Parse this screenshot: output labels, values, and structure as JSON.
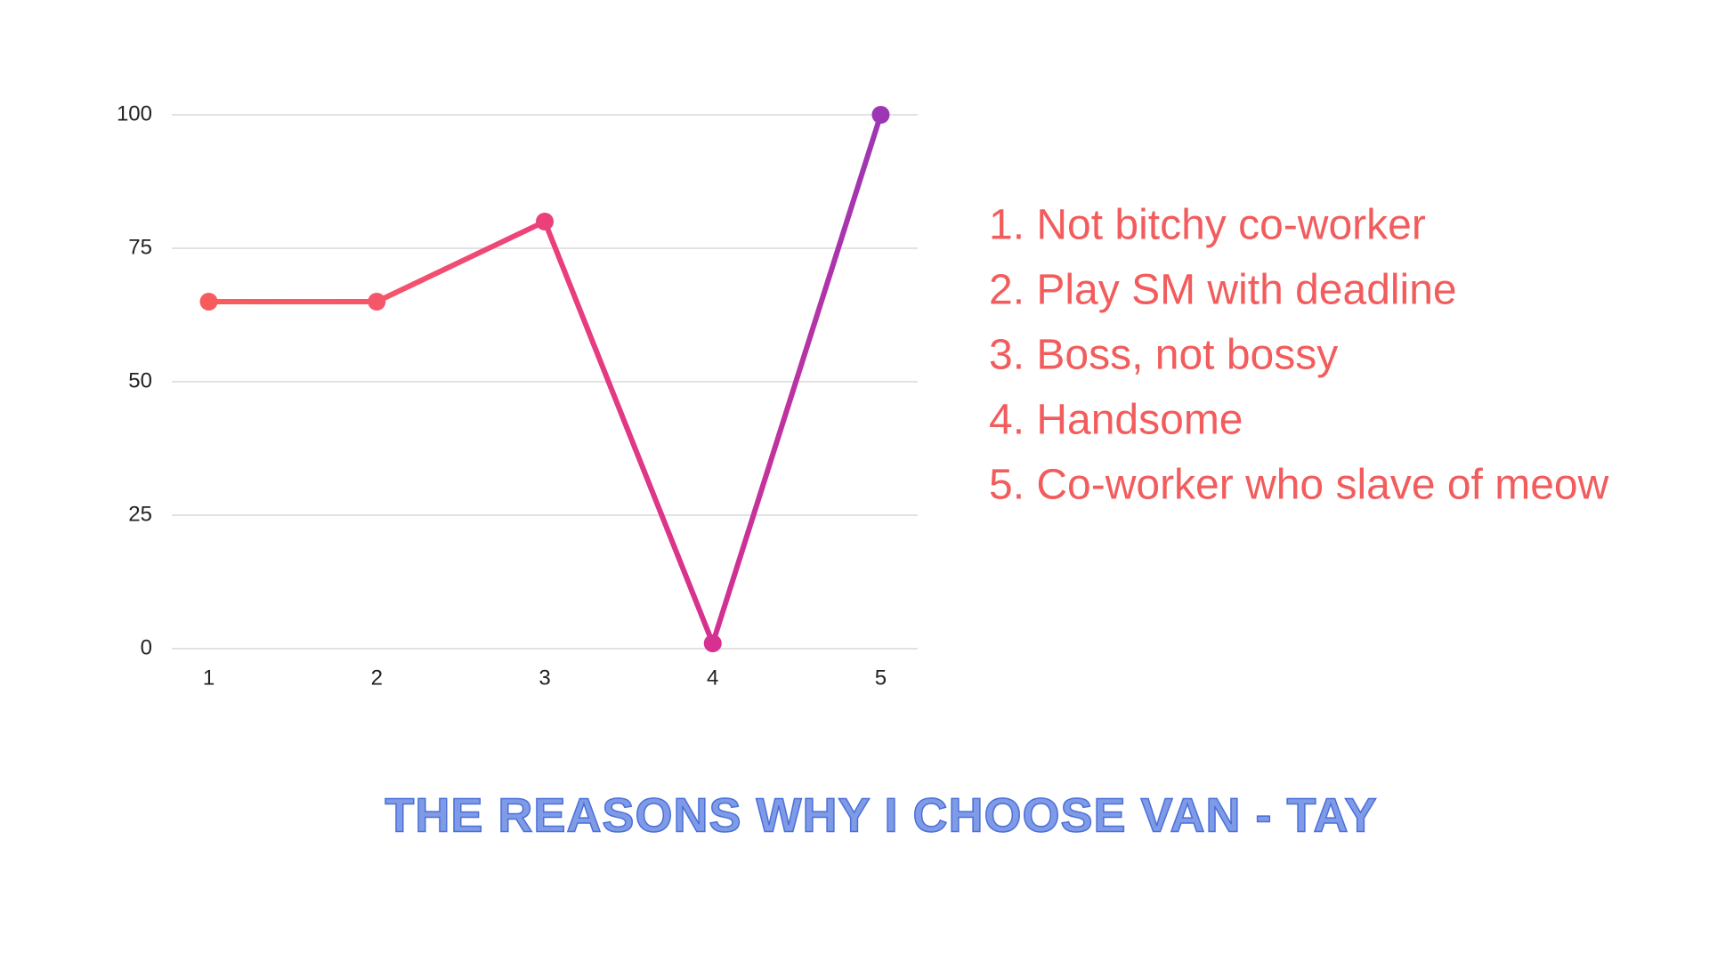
{
  "chart_data": {
    "type": "line",
    "title": "THE REASONS WHY I CHOOSE VAN - TAY",
    "x": [
      1,
      2,
      3,
      4,
      5
    ],
    "series": [
      {
        "colors": [
          "#f75c5c",
          "#f5566a",
          "#ec407a",
          "#d63090",
          "#9c36b5"
        ],
        "values": [
          65,
          65,
          80,
          1,
          100
        ]
      }
    ],
    "xlim": [
      0.78,
      5.22
    ],
    "xticks": [
      1,
      2,
      3,
      4,
      5
    ],
    "ylim": [
      0,
      100
    ],
    "yticks": [
      0,
      25,
      50,
      75,
      100
    ],
    "grid": true,
    "notes": [
      "1. Not bitchy co-worker",
      "2. Play SM with deadline",
      "3. Boss, not bossy",
      "4. Handsome",
      "5. Co-worker who slave of meow"
    ]
  }
}
